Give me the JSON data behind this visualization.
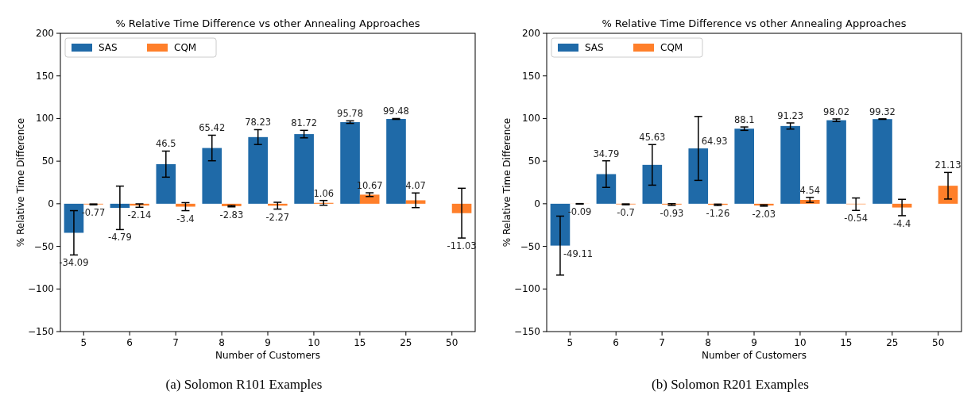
{
  "chart_data": [
    {
      "type": "bar",
      "title": "% Relative Time Difference vs other Annealing Approaches",
      "xlabel": "Number of Customers",
      "ylabel": "% Relative Time Difference",
      "categories": [
        "5",
        "6",
        "7",
        "8",
        "9",
        "10",
        "15",
        "25",
        "50"
      ],
      "series": [
        {
          "name": "SAS",
          "color": "#1f6aa8",
          "values": [
            -34.09,
            -4.79,
            46.5,
            65.42,
            78.23,
            81.72,
            95.78,
            99.48,
            null
          ],
          "errors": [
            26,
            25.5,
            15.3,
            15,
            8.7,
            4.4,
            1.5,
            0.5,
            null
          ]
        },
        {
          "name": "CQM",
          "color": "#ff7f2a",
          "values": [
            -0.77,
            -2.14,
            -3.4,
            -2.83,
            -2.27,
            1.06,
            10.67,
            4.07,
            -11.03
          ],
          "errors": [
            0.5,
            2,
            4.7,
            0.8,
            4,
            2.8,
            2.2,
            8.6,
            29.2
          ]
        }
      ],
      "ylim": [
        -150,
        200
      ],
      "yticks": [
        {
          "value": -150,
          "label": "−150"
        },
        {
          "value": -100,
          "label": "−100"
        },
        {
          "value": -50,
          "label": "−50"
        },
        0,
        50,
        100,
        150,
        200
      ],
      "data_labels": true,
      "legend": "top left",
      "annotations": [
        "(a) Solomon R101 Examples"
      ]
    },
    {
      "type": "bar",
      "title": "% Relative Time Difference vs other Annealing Approaches",
      "xlabel": "Number of Customers",
      "ylabel": "% Relative Time Difference",
      "categories": [
        "5",
        "6",
        "7",
        "8",
        "9",
        "10",
        "15",
        "25",
        "50"
      ],
      "series": [
        {
          "name": "SAS",
          "color": "#1f6aa8",
          "values": [
            -49.11,
            34.79,
            45.63,
            64.93,
            88.1,
            91.23,
            98.02,
            99.32,
            null
          ],
          "errors": [
            34.6,
            15.6,
            23.8,
            37.5,
            2,
            3.6,
            1.5,
            0.3,
            null
          ]
        },
        {
          "name": "CQM",
          "color": "#ff7f2a",
          "values": [
            -0.09,
            -0.7,
            -0.93,
            -1.26,
            -2.03,
            4.54,
            -0.54,
            -4.4,
            21.13
          ],
          "errors": [
            0.3,
            0.5,
            1,
            0.8,
            0.8,
            2.9,
            7.3,
            9.6,
            15.6
          ]
        }
      ],
      "ylim": [
        -150,
        200
      ],
      "yticks": [
        {
          "value": -150,
          "label": "−150"
        },
        {
          "value": -100,
          "label": "−100"
        },
        {
          "value": -50,
          "label": "−50"
        },
        0,
        50,
        100,
        150,
        200
      ],
      "data_labels": true,
      "legend": "top left",
      "annotations": [
        "(b) Solomon R201 Examples"
      ]
    }
  ]
}
